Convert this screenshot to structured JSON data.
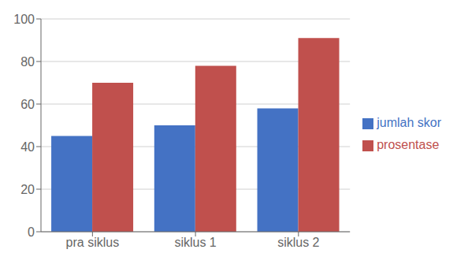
{
  "chart_data": {
    "type": "bar",
    "categories": [
      "pra siklus",
      "siklus 1",
      "siklus 2"
    ],
    "series": [
      {
        "name": "jumlah skor",
        "color": "#4472C4",
        "values": [
          45,
          50,
          58
        ]
      },
      {
        "name": "prosentase",
        "color": "#C0504D",
        "values": [
          70,
          78,
          91
        ]
      }
    ],
    "ylim": [
      0,
      100
    ],
    "yticks": [
      0,
      20,
      40,
      60,
      80,
      100
    ],
    "grid": true,
    "legend": "right"
  }
}
